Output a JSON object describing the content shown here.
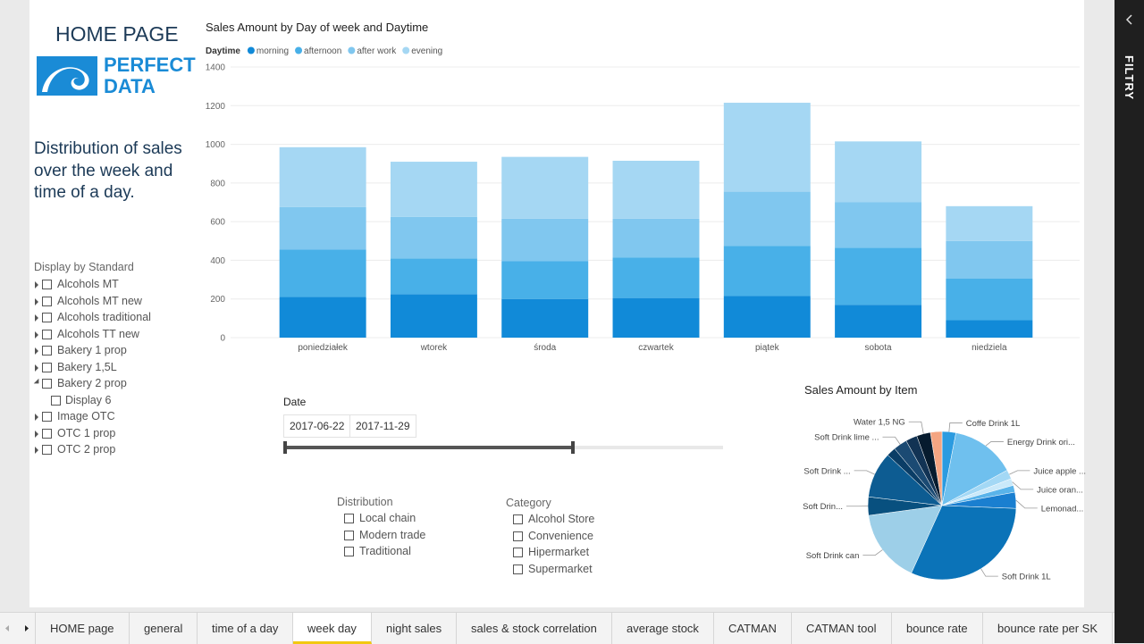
{
  "header": {
    "title": "HOME PAGE",
    "logo": [
      "PERFECT",
      "DATA"
    ],
    "description": "Distribution of sales over the week and time of a day."
  },
  "standard_slicer": {
    "title": "Display by Standard",
    "items": [
      {
        "label": "Alcohols MT"
      },
      {
        "label": "Alcohols MT new"
      },
      {
        "label": "Alcohols traditional"
      },
      {
        "label": "Alcohols TT new"
      },
      {
        "label": "Bakery 1 prop"
      },
      {
        "label": "Bakery 1,5L"
      },
      {
        "label": "Bakery 2 prop",
        "children": [
          "Display 6"
        ]
      },
      {
        "label": "Image OTC"
      },
      {
        "label": "OTC 1 prop"
      },
      {
        "label": "OTC 2 prop"
      }
    ]
  },
  "date_slicer": {
    "title": "Date",
    "start": "2017-06-22",
    "end": "2017-11-29"
  },
  "distribution_slicer": {
    "title": "Distribution",
    "items": [
      "Local chain",
      "Modern trade",
      "Traditional"
    ]
  },
  "category_slicer": {
    "title": "Category",
    "items": [
      "Alcohol Store",
      "Convenience",
      "Hipermarket",
      "Supermarket"
    ]
  },
  "filter_pane": {
    "title": "FILTRY"
  },
  "tabs": {
    "items": [
      "HOME page",
      "general",
      "time of a day",
      "week day",
      "night sales",
      "sales & stock correlation",
      "average stock",
      "CATMAN",
      "CATMAN tool",
      "bounce rate",
      "bounce rate per SK"
    ],
    "active": 3
  },
  "chart_data": [
    {
      "type": "bar",
      "stacked": true,
      "title": "Sales Amount by Day of week and Daytime",
      "legend_title": "Daytime",
      "categories": [
        "poniedziałek",
        "wtorek",
        "środa",
        "czwartek",
        "piątek",
        "sobota",
        "niedziela"
      ],
      "series": [
        {
          "name": "morning",
          "color": "#118ad8",
          "values": [
            210,
            225,
            200,
            205,
            215,
            170,
            90
          ]
        },
        {
          "name": "afternoon",
          "color": "#48b0e8",
          "values": [
            245,
            185,
            195,
            210,
            260,
            295,
            215
          ]
        },
        {
          "name": "after work",
          "color": "#80c7ef",
          "values": [
            220,
            215,
            220,
            200,
            280,
            235,
            195
          ]
        },
        {
          "name": "evening",
          "color": "#a5d7f3",
          "values": [
            310,
            285,
            320,
            300,
            460,
            315,
            180
          ]
        }
      ],
      "ylim": [
        0,
        1400
      ],
      "yticks": [
        0,
        200,
        400,
        600,
        800,
        1000,
        1200,
        1400
      ],
      "grid": true
    },
    {
      "type": "pie",
      "title": "Sales Amount by Item",
      "categories": [
        "Coffe Drink 1L",
        "Energy Drink ori...",
        "Juice apple ...",
        "Juice oran...",
        null,
        "Lemonad...",
        "Soft Drink 1L",
        "Soft Drink can",
        "Soft Drin...",
        "Soft Drink ...",
        null,
        "Soft Drink lime ...",
        null,
        "Water 1,5 NG",
        null
      ],
      "values": [
        3,
        14,
        2,
        1.5,
        1.5,
        3.5,
        31,
        16,
        4,
        10,
        2,
        3,
        2.5,
        3,
        2.5
      ],
      "colors": [
        "#2b9be0",
        "#6fc0ee",
        "#a3d8f5",
        "#c9e9fa",
        "#5ab4ea",
        "#1a7fd0",
        "#0b73b8",
        "#9dcfe8",
        "#08507f",
        "#0d5c92",
        "#0a3d66",
        "#1b4a73",
        "#123354",
        "#061b2e",
        "#f4a582"
      ]
    }
  ]
}
